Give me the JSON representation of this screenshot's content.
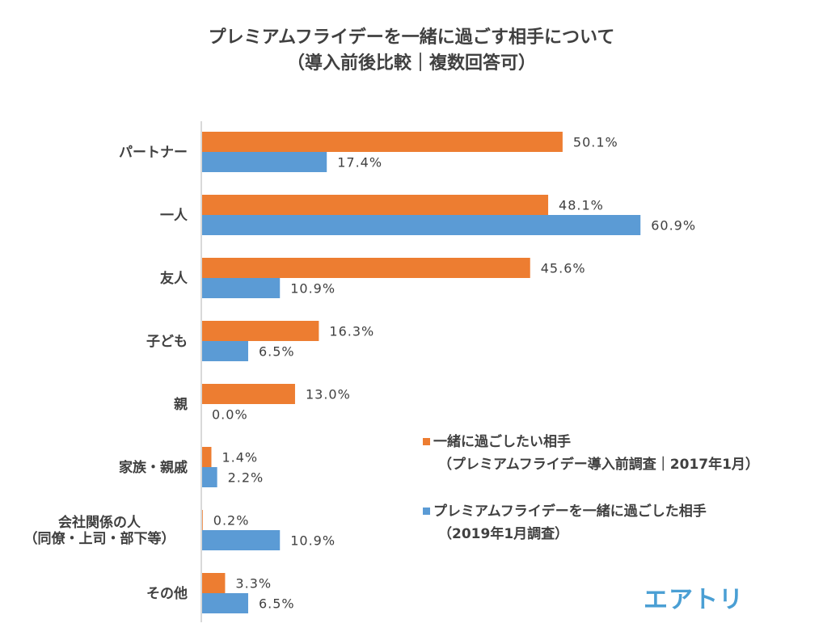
{
  "chart_data": {
    "type": "bar",
    "orientation": "horizontal",
    "title": "プレミアムフライデーを一緒に過ごす相手について",
    "subtitle": "（導入前後比較｜複数回答可）",
    "categories": [
      [
        "パートナー"
      ],
      [
        "一人"
      ],
      [
        "友人"
      ],
      [
        "子ども"
      ],
      [
        "親"
      ],
      [
        "家族・親戚"
      ],
      [
        "会社関係の人",
        "（同僚・上司・部下等）"
      ],
      [
        "その他"
      ]
    ],
    "series": [
      {
        "name": "一緒に過ごしたい相手",
        "name_line2": "（プレミアムフライデー導入前調査｜2017年1月）",
        "color": "#ED7D31",
        "values": [
          50.1,
          48.1,
          45.6,
          16.3,
          13.0,
          1.4,
          0.2,
          3.3
        ],
        "labels": [
          "50.1%",
          "48.1%",
          "45.6%",
          "16.3%",
          "13.0%",
          "1.4%",
          "0.2%",
          "3.3%"
        ]
      },
      {
        "name": "プレミアムフライデーを一緒に過ごした相手",
        "name_line2": "（2019年1月調査）",
        "color": "#5B9BD5",
        "values": [
          17.4,
          60.9,
          10.9,
          6.5,
          0.0,
          2.2,
          10.9,
          6.5
        ],
        "labels": [
          "17.4%",
          "60.9%",
          "10.9%",
          "6.5%",
          "0.0%",
          "2.2%",
          "10.9%",
          "6.5%"
        ]
      }
    ],
    "xlabel": "",
    "ylabel": "",
    "xlim": [
      0,
      61
    ],
    "grid": false,
    "legend_position": "bottom-right",
    "axis_color": "#D9D9D9"
  },
  "logo": {
    "text": "エアトリ",
    "color": "#4A9FD4"
  }
}
